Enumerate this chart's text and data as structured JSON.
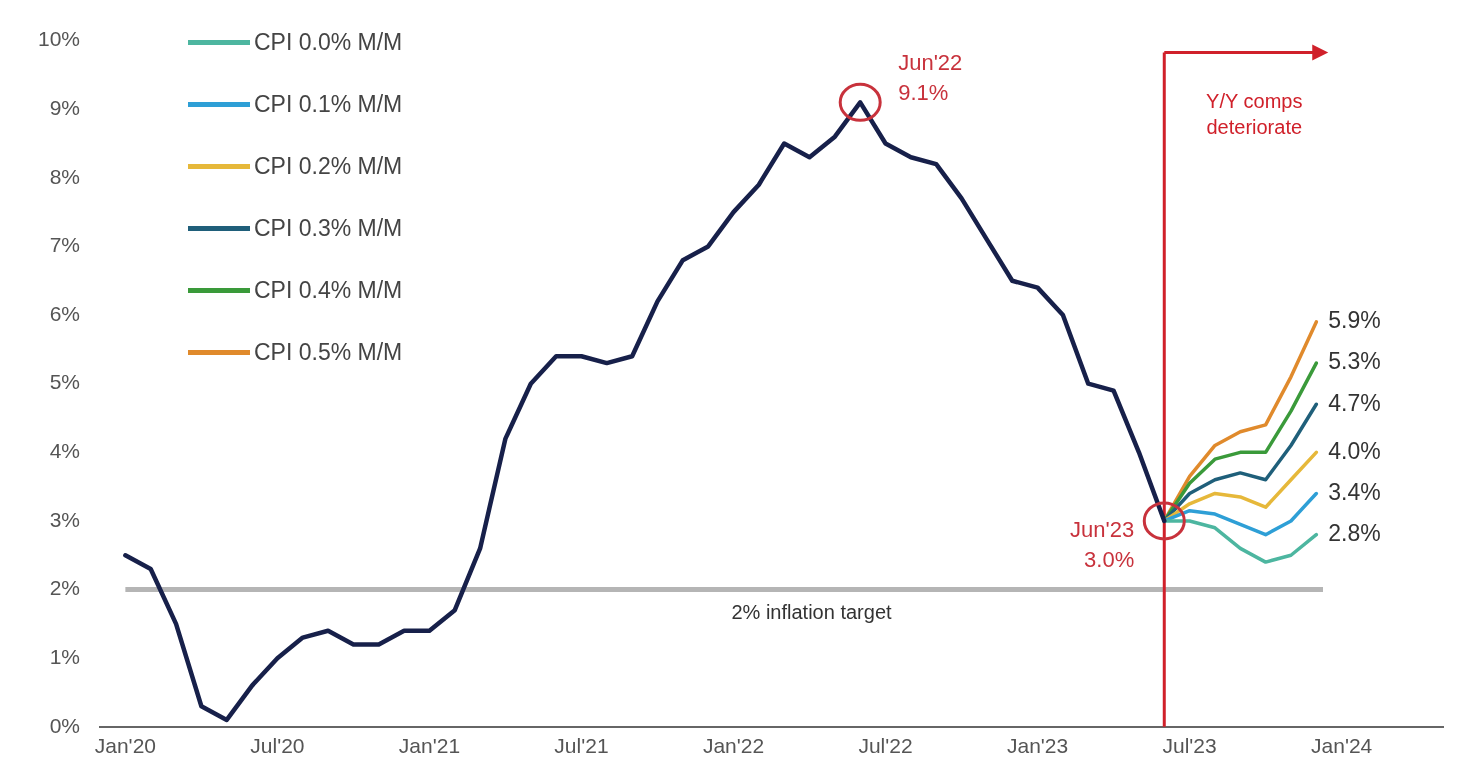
{
  "chart_data": {
    "type": "line",
    "x": [
      "2020-01",
      "2020-02",
      "2020-03",
      "2020-04",
      "2020-05",
      "2020-06",
      "2020-07",
      "2020-08",
      "2020-09",
      "2020-10",
      "2020-11",
      "2020-12",
      "2021-01",
      "2021-02",
      "2021-03",
      "2021-04",
      "2021-05",
      "2021-06",
      "2021-07",
      "2021-08",
      "2021-09",
      "2021-10",
      "2021-11",
      "2021-12",
      "2022-01",
      "2022-02",
      "2022-03",
      "2022-04",
      "2022-05",
      "2022-06",
      "2022-07",
      "2022-08",
      "2022-09",
      "2022-10",
      "2022-11",
      "2022-12",
      "2023-01",
      "2023-02",
      "2023-03",
      "2023-04",
      "2023-05",
      "2023-06"
    ],
    "series": [
      {
        "color": "#17204a",
        "values": [
          2.5,
          2.3,
          1.5,
          0.3,
          0.1,
          0.6,
          1.0,
          1.3,
          1.4,
          1.2,
          1.2,
          1.4,
          1.4,
          1.7,
          2.6,
          4.2,
          5.0,
          5.4,
          5.4,
          5.3,
          5.4,
          6.2,
          6.8,
          7.0,
          7.5,
          7.9,
          8.5,
          8.3,
          8.6,
          9.1,
          8.5,
          8.3,
          8.2,
          7.7,
          7.1,
          6.5,
          6.4,
          6.0,
          5.0,
          4.9,
          4.0,
          3.0
        ]
      },
      {
        "name": "CPI 0.0% M/M",
        "color": "#4db6a0",
        "x": [
          "2023-06",
          "2023-07",
          "2023-08",
          "2023-09",
          "2023-10",
          "2023-11",
          "2023-12"
        ],
        "values": [
          3.0,
          3.0,
          2.9,
          2.6,
          2.4,
          2.5,
          2.8
        ],
        "value_labels": [
          null,
          null,
          null,
          null,
          null,
          null,
          "2.8%"
        ]
      },
      {
        "name": "CPI 0.1% M/M",
        "color": "#2e9fd6",
        "x": [
          "2023-06",
          "2023-07",
          "2023-08",
          "2023-09",
          "2023-10",
          "2023-11",
          "2023-12"
        ],
        "values": [
          3.0,
          3.15,
          3.1,
          2.95,
          2.8,
          3.0,
          3.4
        ],
        "value_labels": [
          null,
          null,
          null,
          null,
          null,
          null,
          "3.4%"
        ]
      },
      {
        "name": "CPI 0.2% M/M",
        "color": "#e6b83a",
        "x": [
          "2023-06",
          "2023-07",
          "2023-08",
          "2023-09",
          "2023-10",
          "2023-11",
          "2023-12"
        ],
        "values": [
          3.0,
          3.25,
          3.4,
          3.35,
          3.2,
          3.6,
          4.0
        ],
        "value_labels": [
          null,
          null,
          null,
          null,
          null,
          null,
          "4.0%"
        ]
      },
      {
        "name": "CPI 0.3% M/M",
        "color": "#1f5f7a",
        "x": [
          "2023-06",
          "2023-07",
          "2023-08",
          "2023-09",
          "2023-10",
          "2023-11",
          "2023-12"
        ],
        "values": [
          3.0,
          3.4,
          3.6,
          3.7,
          3.6,
          4.1,
          4.7
        ],
        "value_labels": [
          null,
          null,
          null,
          null,
          null,
          null,
          "4.7%"
        ]
      },
      {
        "name": "CPI 0.4% M/M",
        "color": "#3a9a3a",
        "x": [
          "2023-06",
          "2023-07",
          "2023-08",
          "2023-09",
          "2023-10",
          "2023-11",
          "2023-12"
        ],
        "values": [
          3.0,
          3.55,
          3.9,
          4.0,
          4.0,
          4.6,
          5.3
        ],
        "value_labels": [
          null,
          null,
          null,
          null,
          null,
          null,
          "5.3%"
        ]
      },
      {
        "name": "CPI 0.5% M/M",
        "color": "#e08a2c",
        "x": [
          "2023-06",
          "2023-07",
          "2023-08",
          "2023-09",
          "2023-10",
          "2023-11",
          "2023-12"
        ],
        "values": [
          3.0,
          3.65,
          4.1,
          4.3,
          4.4,
          5.1,
          5.9
        ],
        "value_labels": [
          null,
          null,
          null,
          null,
          null,
          null,
          "5.9%"
        ]
      }
    ],
    "xlim": [
      "2019-12",
      "2024-05"
    ],
    "xticks": [
      {
        "value": "2020-01",
        "label": "Jan'20"
      },
      {
        "value": "2020-07",
        "label": "Jul'20"
      },
      {
        "value": "2021-01",
        "label": "Jan'21"
      },
      {
        "value": "2021-07",
        "label": "Jul'21"
      },
      {
        "value": "2022-01",
        "label": "Jan'22"
      },
      {
        "value": "2022-07",
        "label": "Jul'22"
      },
      {
        "value": "2023-01",
        "label": "Jan'23"
      },
      {
        "value": "2023-07",
        "label": "Jul'23"
      },
      {
        "value": "2024-01",
        "label": "Jan'24"
      }
    ],
    "ylim": [
      0,
      10
    ],
    "yticks": [
      {
        "value": 0,
        "label": "0%"
      },
      {
        "value": 1,
        "label": "1%"
      },
      {
        "value": 2,
        "label": "2%"
      },
      {
        "value": 3,
        "label": "3%"
      },
      {
        "value": 4,
        "label": "4%"
      },
      {
        "value": 5,
        "label": "5%"
      },
      {
        "value": 6,
        "label": "6%"
      },
      {
        "value": 7,
        "label": "7%"
      },
      {
        "value": 8,
        "label": "8%"
      },
      {
        "value": 9,
        "label": "9%"
      },
      {
        "value": 10,
        "label": "10%"
      }
    ],
    "ref_lines": [
      {
        "axis": "y",
        "value": 2,
        "label": "2% inflation target",
        "color": "#b5b5b5"
      },
      {
        "axis": "x",
        "value": "2023-06",
        "label": "Y/Y comps\ndeteriorate",
        "color": "#d0202a"
      }
    ],
    "annotations": [
      {
        "text": "Jun'22\n9.1%",
        "x": "2022-06",
        "y": 9.1
      },
      {
        "text": "Jun'23\n3.0%",
        "x": "2023-06",
        "y": 3.0
      }
    ],
    "legend": "top left",
    "grid": false
  }
}
